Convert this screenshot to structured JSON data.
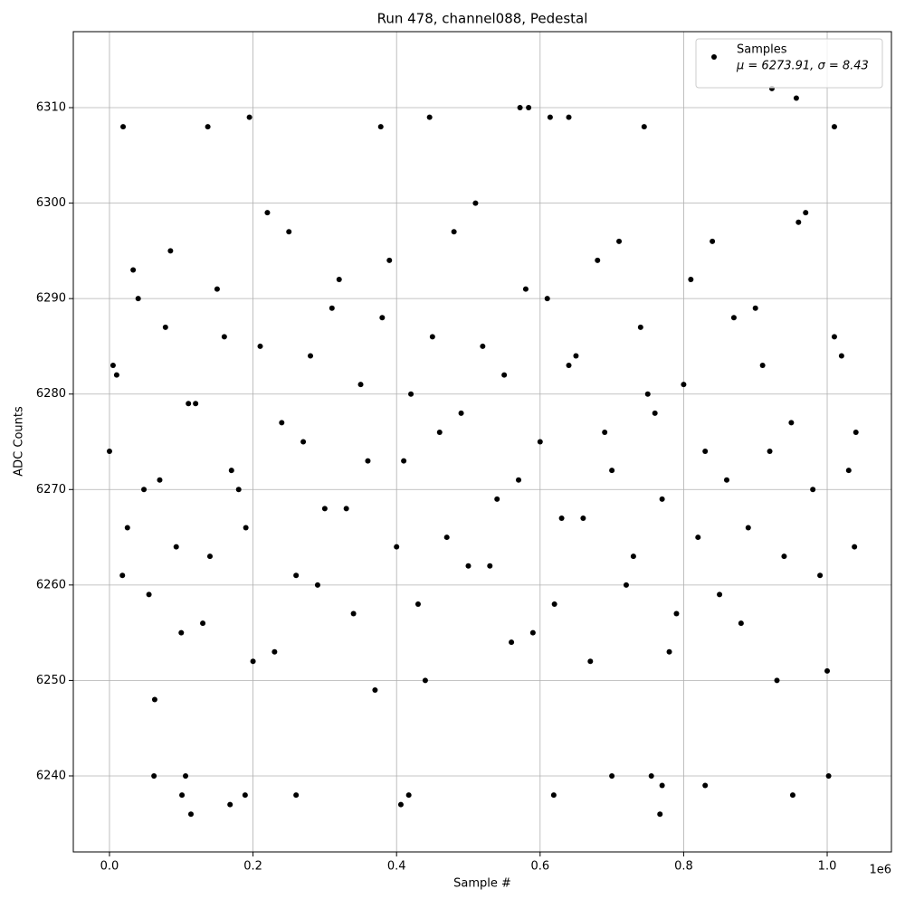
{
  "chart_data": {
    "type": "scatter",
    "title": "Run 478, channel088, Pedestal",
    "x_label": "Sample #",
    "y_label": "ADC Counts",
    "x_offset_label": "1e6",
    "xlim": [
      -50400,
      1089500
    ],
    "ylim": [
      6232.04,
      6317.96
    ],
    "xticks": [
      {
        "value": 0,
        "label": "0.0"
      },
      {
        "value": 200000,
        "label": "0.2"
      },
      {
        "value": 400000,
        "label": "0.4"
      },
      {
        "value": 600000,
        "label": "0.6"
      },
      {
        "value": 800000,
        "label": "0.8"
      },
      {
        "value": 1000000,
        "label": "1.0"
      }
    ],
    "yticks": [
      6240,
      6250,
      6260,
      6270,
      6280,
      6290,
      6300,
      6310
    ],
    "grid": true,
    "legend": "upper right",
    "legend_note": "μ = 6273.91, σ = 8.43",
    "series": [
      {
        "name": "Samples",
        "color": "#000000",
        "x": [
          0,
          10000,
          25000,
          40000,
          55000,
          70000,
          85000,
          100000,
          120000,
          140000,
          160000,
          180000,
          200000,
          220000,
          240000,
          260000,
          280000,
          300000,
          320000,
          340000,
          360000,
          380000,
          400000,
          420000,
          440000,
          460000,
          480000,
          500000,
          520000,
          540000,
          560000,
          580000,
          600000,
          620000,
          640000,
          660000,
          680000,
          700000,
          720000,
          740000,
          760000,
          780000,
          800000,
          820000,
          840000,
          860000,
          880000,
          900000,
          920000,
          940000,
          960000,
          980000,
          1000000,
          1020000,
          1040000,
          5000,
          18000,
          33000,
          48000,
          63000,
          78000,
          93000,
          110000,
          130000,
          150000,
          170000,
          190000,
          210000,
          230000,
          250000,
          270000,
          290000,
          310000,
          330000,
          350000,
          370000,
          390000,
          410000,
          430000,
          450000,
          470000,
          490000,
          510000,
          530000,
          550000,
          570000,
          590000,
          610000,
          630000,
          650000,
          670000,
          690000,
          710000,
          730000,
          750000,
          770000,
          790000,
          810000,
          830000,
          850000,
          870000,
          890000,
          910000,
          930000,
          950000,
          970000,
          990000,
          1010000,
          1030000,
          1038000,
          113500,
          406000,
          168000,
          767000,
          923000,
          957000,
          195000,
          446000,
          572000,
          584000,
          614000,
          640000,
          1010000,
          745000,
          137000,
          19000,
          378000,
          1002000,
          62000,
          106000,
          700000,
          755000,
          619000,
          952000,
          189000,
          101000,
          260000,
          417000,
          830000,
          770000
        ],
        "y": [
          6274,
          6282,
          6266,
          6290,
          6259,
          6271,
          6295,
          6255,
          6279,
          6263,
          6286,
          6270,
          6252,
          6299,
          6277,
          6261,
          6284,
          6268,
          6292,
          6257,
          6273,
          6288,
          6264,
          6280,
          6250,
          6276,
          6297,
          6262,
          6285,
          6269,
          6254,
          6291,
          6275,
          6258,
          6283,
          6267,
          6294,
          6272,
          6260,
          6287,
          6278,
          6253,
          6281,
          6265,
          6296,
          6271,
          6256,
          6289,
          6274,
          6263,
          6298,
          6270,
          6251,
          6284,
          6276,
          6283,
          6261,
          6293,
          6270,
          6248,
          6287,
          6264,
          6279,
          6256,
          6291,
          6272,
          6266,
          6285,
          6253,
          6297,
          6275,
          6260,
          6289,
          6268,
          6281,
          6249,
          6294,
          6273,
          6258,
          6286,
          6265,
          6278,
          6300,
          6262,
          6282,
          6271,
          6255,
          6290,
          6267,
          6284,
          6252,
          6276,
          6296,
          6263,
          6280,
          6269,
          6257,
          6292,
          6274,
          6259,
          6288,
          6266,
          6283,
          6250,
          6277,
          6299,
          6261,
          6286,
          6272,
          6264,
          6236,
          6237,
          6237,
          6236,
          6312,
          6311,
          6309,
          6309,
          6310,
          6310,
          6309,
          6309,
          6308,
          6308,
          6308,
          6308,
          6308,
          6240,
          6240,
          6240,
          6240,
          6240,
          6238,
          6238,
          6238,
          6238,
          6238,
          6238,
          6239,
          6239
        ]
      }
    ]
  }
}
